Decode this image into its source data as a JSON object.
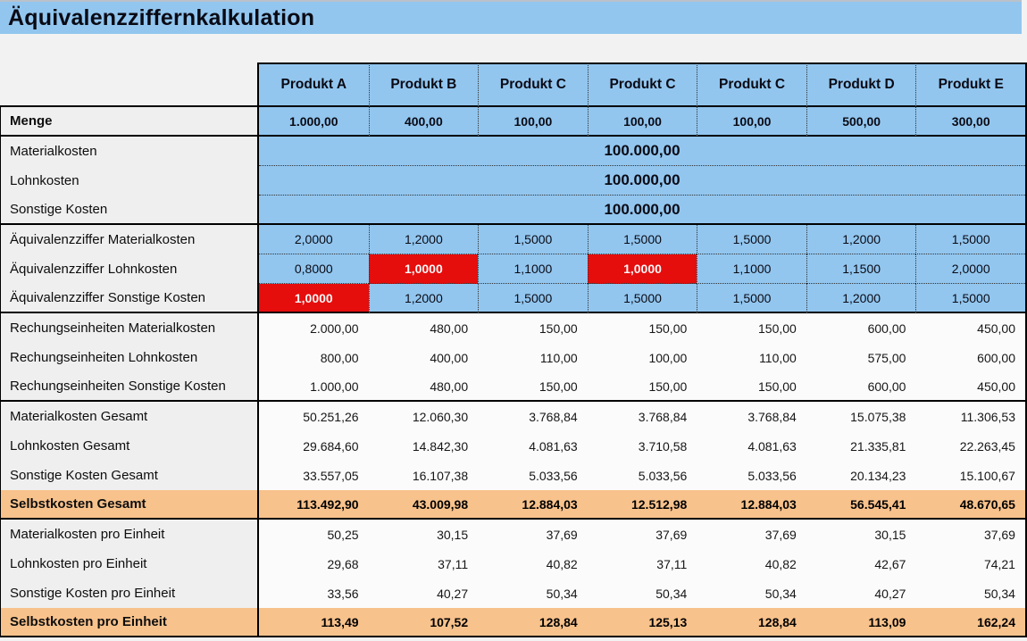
{
  "title": "Äquivalenzziffernkalkulation",
  "colors": {
    "accent_blue": "#92C6EF",
    "alert_red": "#E60D0D",
    "total_orange": "#F8C28C"
  },
  "table": {
    "columns": [
      "Produkt A",
      "Produkt B",
      "Produkt C",
      "Produkt C",
      "Produkt C",
      "Produkt D",
      "Produkt E"
    ],
    "rows": [
      {
        "kind": "qty",
        "label": "Menge",
        "bold_label": true,
        "thick_bottom": true,
        "values": [
          "1.000,00",
          "400,00",
          "100,00",
          "100,00",
          "100,00",
          "500,00",
          "300,00"
        ]
      },
      {
        "kind": "merged",
        "label": "Materialkosten",
        "dotted_bottom": true,
        "value": "100.000,00"
      },
      {
        "kind": "merged",
        "label": "Lohnkosten",
        "dotted_bottom": true,
        "value": "100.000,00"
      },
      {
        "kind": "merged",
        "label": "Sonstige Kosten",
        "thick_bottom": true,
        "value": "100.000,00"
      },
      {
        "kind": "equiv",
        "label": "Äquivalenzziffer Materialkosten",
        "dotted_bottom": true,
        "values": [
          "2,0000",
          "1,2000",
          "1,5000",
          "1,5000",
          "1,5000",
          "1,2000",
          "1,5000"
        ]
      },
      {
        "kind": "equiv",
        "label": "Äquivalenzziffer Lohnkosten",
        "dotted_bottom": true,
        "red": [
          1,
          3
        ],
        "values": [
          "0,8000",
          "1,0000",
          "1,1000",
          "1,0000",
          "1,1000",
          "1,1500",
          "2,0000"
        ]
      },
      {
        "kind": "equiv",
        "label": "Äquivalenzziffer Sonstige Kosten",
        "thick_bottom": true,
        "red": [
          0
        ],
        "values": [
          "1,0000",
          "1,2000",
          "1,5000",
          "1,5000",
          "1,5000",
          "1,2000",
          "1,5000"
        ]
      },
      {
        "kind": "plain",
        "label": "Rechungseinheiten Materialkosten",
        "values": [
          "2.000,00",
          "480,00",
          "150,00",
          "150,00",
          "150,00",
          "600,00",
          "450,00"
        ]
      },
      {
        "kind": "plain",
        "label": "Rechungseinheiten Lohnkosten",
        "values": [
          "800,00",
          "400,00",
          "110,00",
          "100,00",
          "110,00",
          "575,00",
          "600,00"
        ]
      },
      {
        "kind": "plain",
        "label": "Rechungseinheiten Sonstige Kosten",
        "thick_bottom": true,
        "values": [
          "1.000,00",
          "480,00",
          "150,00",
          "150,00",
          "150,00",
          "600,00",
          "450,00"
        ]
      },
      {
        "kind": "plain",
        "label": "Materialkosten Gesamt",
        "values": [
          "50.251,26",
          "12.060,30",
          "3.768,84",
          "3.768,84",
          "3.768,84",
          "15.075,38",
          "11.306,53"
        ]
      },
      {
        "kind": "plain",
        "label": "Lohnkosten Gesamt",
        "values": [
          "29.684,60",
          "14.842,30",
          "4.081,63",
          "3.710,58",
          "4.081,63",
          "21.335,81",
          "22.263,45"
        ]
      },
      {
        "kind": "plain",
        "label": "Sonstige Kosten Gesamt",
        "values": [
          "33.557,05",
          "16.107,38",
          "5.033,56",
          "5.033,56",
          "5.033,56",
          "20.134,23",
          "15.100,67"
        ]
      },
      {
        "kind": "total",
        "label": "Selbstkosten Gesamt",
        "bold_label": true,
        "thick_bottom": true,
        "values": [
          "113.492,90",
          "43.009,98",
          "12.884,03",
          "12.512,98",
          "12.884,03",
          "56.545,41",
          "48.670,65"
        ]
      },
      {
        "kind": "plain",
        "label": "Materialkosten pro Einheit",
        "values": [
          "50,25",
          "30,15",
          "37,69",
          "37,69",
          "37,69",
          "30,15",
          "37,69"
        ]
      },
      {
        "kind": "plain",
        "label": "Lohnkosten pro Einheit",
        "values": [
          "29,68",
          "37,11",
          "40,82",
          "37,11",
          "40,82",
          "42,67",
          "74,21"
        ]
      },
      {
        "kind": "plain",
        "label": "Sonstige Kosten pro Einheit",
        "values": [
          "33,56",
          "40,27",
          "50,34",
          "50,34",
          "50,34",
          "40,27",
          "50,34"
        ]
      },
      {
        "kind": "total",
        "label": "Selbstkosten pro Einheit",
        "bold_label": true,
        "thick_bottom": true,
        "values": [
          "113,49",
          "107,52",
          "128,84",
          "125,13",
          "128,84",
          "113,09",
          "162,24"
        ]
      }
    ]
  }
}
